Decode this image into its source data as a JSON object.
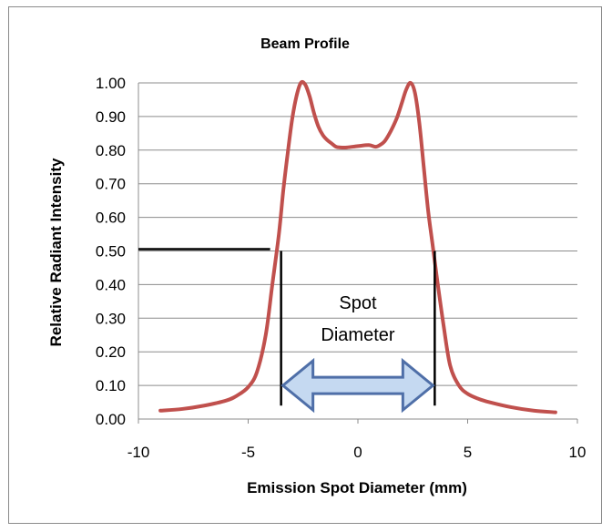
{
  "chart_data": {
    "type": "line",
    "title": "Beam Profile",
    "xlabel": "Emission Spot Diameter (mm)",
    "ylabel": "Relative Radiant Intensity",
    "xlim": [
      -10,
      10
    ],
    "ylim": [
      0,
      1.0
    ],
    "x_ticks": [
      "-10",
      "-5",
      "0",
      "5",
      "10"
    ],
    "y_ticks": [
      "0.00",
      "0.10",
      "0.20",
      "0.30",
      "0.40",
      "0.50",
      "0.60",
      "0.70",
      "0.80",
      "0.90",
      "1.00"
    ],
    "grid": "horizontal",
    "legend": "none",
    "series_color": "#c0504d",
    "series": [
      {
        "x": [
          -9,
          -8,
          -7,
          -6,
          -5.5,
          -5,
          -4.6,
          -4.2,
          -3.9,
          -3.6,
          -3.4,
          -3.2,
          -3.0,
          -2.8,
          -2.6,
          -2.4,
          -2.2,
          -2.0,
          -1.8,
          -1.6,
          -1.4,
          -1.2,
          -1.0,
          -0.8,
          -0.5,
          0,
          0.5,
          0.8,
          1.0,
          1.2,
          1.4,
          1.6,
          1.8,
          2.0,
          2.2,
          2.4,
          2.6,
          2.8,
          3.0,
          3.2,
          3.4,
          3.6,
          3.9,
          4.2,
          4.6,
          5,
          5.5,
          6,
          7,
          8,
          9
        ],
        "y": [
          0.025,
          0.03,
          0.04,
          0.055,
          0.07,
          0.095,
          0.14,
          0.25,
          0.4,
          0.55,
          0.68,
          0.79,
          0.89,
          0.96,
          1.0,
          0.995,
          0.96,
          0.91,
          0.87,
          0.845,
          0.83,
          0.82,
          0.81,
          0.808,
          0.808,
          0.812,
          0.815,
          0.81,
          0.815,
          0.825,
          0.845,
          0.87,
          0.9,
          0.94,
          0.98,
          1.0,
          0.97,
          0.88,
          0.75,
          0.62,
          0.52,
          0.42,
          0.28,
          0.16,
          0.1,
          0.075,
          0.06,
          0.05,
          0.035,
          0.025,
          0.02
        ]
      }
    ],
    "annotations": {
      "half_max_level": 0.5,
      "half_max_line_xstart": -10,
      "half_max_line_xend": -4,
      "left_edge_x": -3.5,
      "right_edge_x": 3.5,
      "arrow_y": 0.1,
      "arrow_fill": "#c5d9f1",
      "arrow_stroke": "#4f6fa8",
      "label_line1": "Spot",
      "label_line2": "Diameter"
    }
  }
}
